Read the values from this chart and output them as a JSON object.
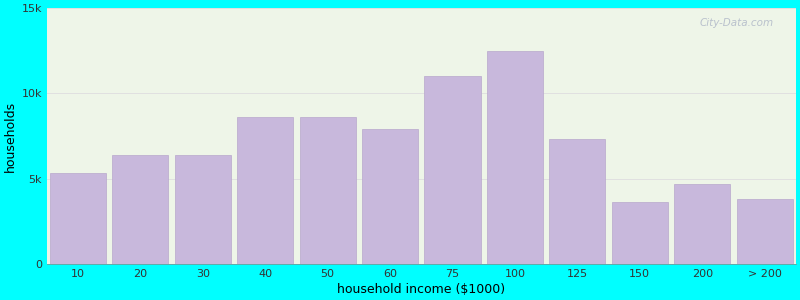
{
  "xlabel": "household income ($1000)",
  "ylabel": "households",
  "background_color": "#00FFFF",
  "plot_bg_color_left": "#e8f5e2",
  "plot_bg_color_right": "#f0f8ff",
  "bar_color": "#c8b8dc",
  "bar_edge_color": "#b8a8cc",
  "categories": [
    "10",
    "20",
    "30",
    "40",
    "50",
    "60",
    "75",
    "100",
    "125",
    "150",
    "200",
    "> 200"
  ],
  "values": [
    5300,
    6400,
    6400,
    8600,
    8600,
    7900,
    11000,
    12500,
    7300,
    3600,
    4700,
    3800
  ],
  "ylim": [
    0,
    15000
  ],
  "yticks": [
    0,
    5000,
    10000,
    15000
  ],
  "ytick_labels": [
    "0",
    "5k",
    "10k",
    "15k"
  ],
  "title_fontsize": 12.5,
  "subtitle_fontsize": 10,
  "subtitle_color": "#d08030",
  "axis_label_fontsize": 9,
  "tick_fontsize": 8,
  "watermark_text": "City-Data.com",
  "watermark_color": "#b0b8c8",
  "grid_color": "#e0e0e0"
}
